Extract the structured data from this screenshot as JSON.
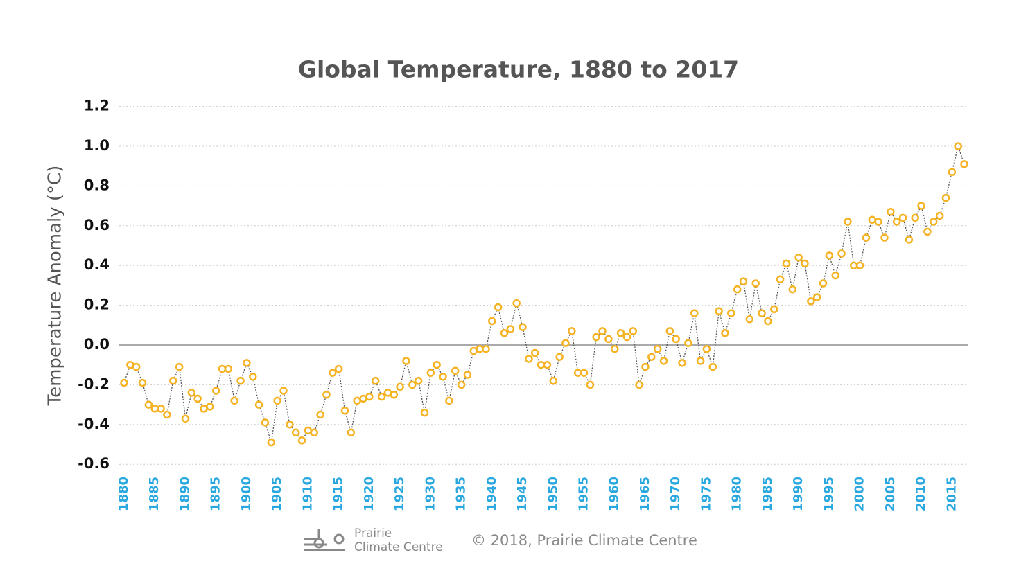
{
  "chart_data": {
    "type": "line",
    "title": "Global Temperature, 1880 to 2017",
    "ylabel": "Temperature Anomaly (°C)",
    "x": [
      1880,
      1881,
      1882,
      1883,
      1884,
      1885,
      1886,
      1887,
      1888,
      1889,
      1890,
      1891,
      1892,
      1893,
      1894,
      1895,
      1896,
      1897,
      1898,
      1899,
      1900,
      1901,
      1902,
      1903,
      1904,
      1905,
      1906,
      1907,
      1908,
      1909,
      1910,
      1911,
      1912,
      1913,
      1914,
      1915,
      1916,
      1917,
      1918,
      1919,
      1920,
      1921,
      1922,
      1923,
      1924,
      1925,
      1926,
      1927,
      1928,
      1929,
      1930,
      1931,
      1932,
      1933,
      1934,
      1935,
      1936,
      1937,
      1938,
      1939,
      1940,
      1941,
      1942,
      1943,
      1944,
      1945,
      1946,
      1947,
      1948,
      1949,
      1950,
      1951,
      1952,
      1953,
      1954,
      1955,
      1956,
      1957,
      1958,
      1959,
      1960,
      1961,
      1962,
      1963,
      1964,
      1965,
      1966,
      1967,
      1968,
      1969,
      1970,
      1971,
      1972,
      1973,
      1974,
      1975,
      1976,
      1977,
      1978,
      1979,
      1980,
      1981,
      1982,
      1983,
      1984,
      1985,
      1986,
      1987,
      1988,
      1989,
      1990,
      1991,
      1992,
      1993,
      1994,
      1995,
      1996,
      1997,
      1998,
      1999,
      2000,
      2001,
      2002,
      2003,
      2004,
      2005,
      2006,
      2007,
      2008,
      2009,
      2010,
      2011,
      2012,
      2013,
      2014,
      2015,
      2016,
      2017
    ],
    "series": [
      {
        "name": "Temperature Anomaly",
        "color": "#f5b324",
        "values": [
          -0.19,
          -0.1,
          -0.11,
          -0.19,
          -0.3,
          -0.32,
          -0.32,
          -0.35,
          -0.18,
          -0.11,
          -0.37,
          -0.24,
          -0.27,
          -0.32,
          -0.31,
          -0.23,
          -0.12,
          -0.12,
          -0.28,
          -0.18,
          -0.09,
          -0.16,
          -0.3,
          -0.39,
          -0.49,
          -0.28,
          -0.23,
          -0.4,
          -0.44,
          -0.48,
          -0.43,
          -0.44,
          -0.35,
          -0.25,
          -0.14,
          -0.12,
          -0.33,
          -0.44,
          -0.28,
          -0.27,
          -0.26,
          -0.18,
          -0.26,
          -0.24,
          -0.25,
          -0.21,
          -0.08,
          -0.2,
          -0.18,
          -0.34,
          -0.14,
          -0.1,
          -0.16,
          -0.28,
          -0.13,
          -0.2,
          -0.15,
          -0.03,
          -0.02,
          -0.02,
          0.12,
          0.19,
          0.06,
          0.08,
          0.21,
          0.09,
          -0.07,
          -0.04,
          -0.1,
          -0.1,
          -0.18,
          -0.06,
          0.01,
          0.07,
          -0.14,
          -0.14,
          -0.2,
          0.04,
          0.07,
          0.03,
          -0.02,
          0.06,
          0.04,
          0.07,
          -0.2,
          -0.11,
          -0.06,
          -0.02,
          -0.08,
          0.07,
          0.03,
          -0.09,
          0.01,
          0.16,
          -0.08,
          -0.02,
          -0.11,
          0.17,
          0.06,
          0.16,
          0.28,
          0.32,
          0.13,
          0.31,
          0.16,
          0.12,
          0.18,
          0.33,
          0.41,
          0.28,
          0.44,
          0.41,
          0.22,
          0.24,
          0.31,
          0.45,
          0.35,
          0.46,
          0.62,
          0.4,
          0.4,
          0.54,
          0.63,
          0.62,
          0.54,
          0.67,
          0.62,
          0.64,
          0.53,
          0.64,
          0.7,
          0.57,
          0.62,
          0.65,
          0.74,
          0.87,
          1.0,
          0.91
        ]
      }
    ],
    "xlim": [
      1880,
      2017
    ],
    "xticks": [
      1880,
      1885,
      1890,
      1895,
      1900,
      1905,
      1910,
      1915,
      1920,
      1925,
      1930,
      1935,
      1940,
      1945,
      1950,
      1955,
      1960,
      1965,
      1970,
      1975,
      1980,
      1985,
      1990,
      1995,
      2000,
      2005,
      2010,
      2015
    ],
    "ylim": [
      -0.6,
      1.2
    ],
    "yticks": [
      1.2,
      {
        "value": 1.0,
        "label": "1.0"
      },
      0.8,
      0.6,
      0.4,
      0.2,
      {
        "value": 0,
        "label": "0.0"
      },
      -0.2,
      -0.4,
      -0.6
    ],
    "grid": true,
    "logo_text": [
      "Prairie",
      "Climate Centre"
    ],
    "credit": "© 2018, Prairie Climate Centre"
  }
}
